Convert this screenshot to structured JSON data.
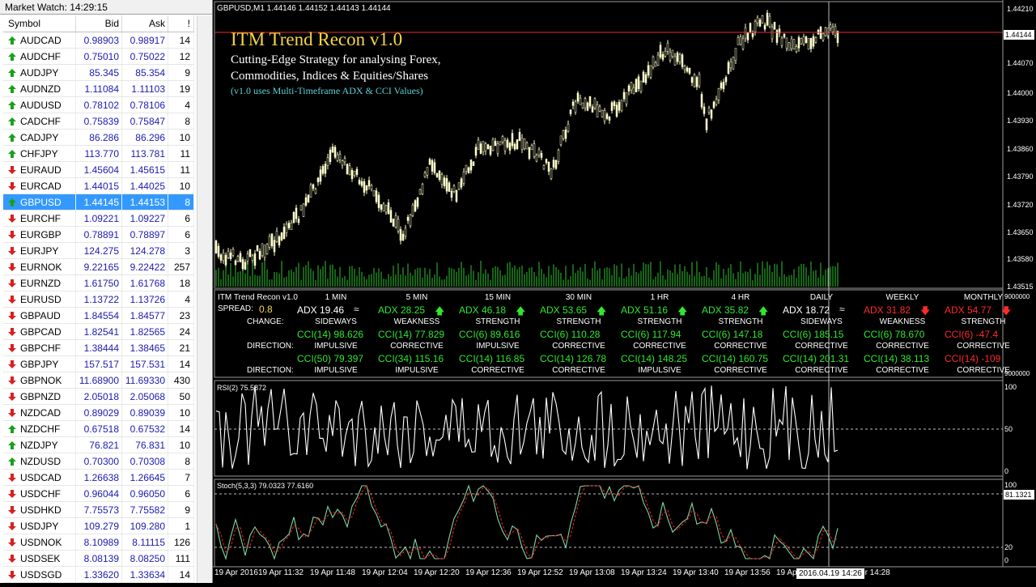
{
  "market_watch": {
    "title": "Market Watch: 14:29:15",
    "columns": [
      "Symbol",
      "Bid",
      "Ask",
      "!"
    ],
    "rows": [
      {
        "symbol": "AUDCAD",
        "bid": "0.98903",
        "ask": "0.98917",
        "spread": "14",
        "dir": "up"
      },
      {
        "symbol": "AUDCHF",
        "bid": "0.75010",
        "ask": "0.75022",
        "spread": "12",
        "dir": "up"
      },
      {
        "symbol": "AUDJPY",
        "bid": "85.345",
        "ask": "85.354",
        "spread": "9",
        "dir": "up"
      },
      {
        "symbol": "AUDNZD",
        "bid": "1.11084",
        "ask": "1.11103",
        "spread": "19",
        "dir": "up"
      },
      {
        "symbol": "AUDUSD",
        "bid": "0.78102",
        "ask": "0.78106",
        "spread": "4",
        "dir": "up"
      },
      {
        "symbol": "CADCHF",
        "bid": "0.75839",
        "ask": "0.75847",
        "spread": "8",
        "dir": "up"
      },
      {
        "symbol": "CADJPY",
        "bid": "86.286",
        "ask": "86.296",
        "spread": "10",
        "dir": "up"
      },
      {
        "symbol": "CHFJPY",
        "bid": "113.770",
        "ask": "113.781",
        "spread": "11",
        "dir": "up"
      },
      {
        "symbol": "EURAUD",
        "bid": "1.45604",
        "ask": "1.45615",
        "spread": "11",
        "dir": "down"
      },
      {
        "symbol": "EURCAD",
        "bid": "1.44015",
        "ask": "1.44025",
        "spread": "10",
        "dir": "down"
      },
      {
        "symbol": "GBPUSD",
        "bid": "1.44145",
        "ask": "1.44153",
        "spread": "8",
        "dir": "up",
        "selected": true
      },
      {
        "symbol": "EURCHF",
        "bid": "1.09221",
        "ask": "1.09227",
        "spread": "6",
        "dir": "down"
      },
      {
        "symbol": "EURGBP",
        "bid": "0.78891",
        "ask": "0.78897",
        "spread": "6",
        "dir": "down"
      },
      {
        "symbol": "EURJPY",
        "bid": "124.275",
        "ask": "124.278",
        "spread": "3",
        "dir": "down"
      },
      {
        "symbol": "EURNOK",
        "bid": "9.22165",
        "ask": "9.22422",
        "spread": "257",
        "dir": "down"
      },
      {
        "symbol": "EURNZD",
        "bid": "1.61750",
        "ask": "1.61768",
        "spread": "18",
        "dir": "down"
      },
      {
        "symbol": "EURUSD",
        "bid": "1.13722",
        "ask": "1.13726",
        "spread": "4",
        "dir": "down"
      },
      {
        "symbol": "GBPAUD",
        "bid": "1.84554",
        "ask": "1.84577",
        "spread": "23",
        "dir": "down"
      },
      {
        "symbol": "GBPCAD",
        "bid": "1.82541",
        "ask": "1.82565",
        "spread": "24",
        "dir": "down"
      },
      {
        "symbol": "GBPCHF",
        "bid": "1.38444",
        "ask": "1.38465",
        "spread": "21",
        "dir": "down"
      },
      {
        "symbol": "GBPJPY",
        "bid": "157.517",
        "ask": "157.531",
        "spread": "14",
        "dir": "down"
      },
      {
        "symbol": "GBPNOK",
        "bid": "11.68900",
        "ask": "11.69330",
        "spread": "430",
        "dir": "down"
      },
      {
        "symbol": "GBPNZD",
        "bid": "2.05018",
        "ask": "2.05068",
        "spread": "50",
        "dir": "down"
      },
      {
        "symbol": "NZDCAD",
        "bid": "0.89029",
        "ask": "0.89039",
        "spread": "10",
        "dir": "down"
      },
      {
        "symbol": "NZDCHF",
        "bid": "0.67518",
        "ask": "0.67532",
        "spread": "14",
        "dir": "up"
      },
      {
        "symbol": "NZDJPY",
        "bid": "76.821",
        "ask": "76.831",
        "spread": "10",
        "dir": "up"
      },
      {
        "symbol": "NZDUSD",
        "bid": "0.70300",
        "ask": "0.70308",
        "spread": "8",
        "dir": "up"
      },
      {
        "symbol": "USDCAD",
        "bid": "1.26638",
        "ask": "1.26645",
        "spread": "7",
        "dir": "down"
      },
      {
        "symbol": "USDCHF",
        "bid": "0.96044",
        "ask": "0.96050",
        "spread": "6",
        "dir": "down"
      },
      {
        "symbol": "USDHKD",
        "bid": "7.75573",
        "ask": "7.75582",
        "spread": "9",
        "dir": "down"
      },
      {
        "symbol": "USDJPY",
        "bid": "109.279",
        "ask": "109.280",
        "spread": "1",
        "dir": "down"
      },
      {
        "symbol": "USDNOK",
        "bid": "8.10989",
        "ask": "8.11115",
        "spread": "126",
        "dir": "down"
      },
      {
        "symbol": "USDSEK",
        "bid": "8.08139",
        "ask": "8.08250",
        "spread": "111",
        "dir": "down"
      },
      {
        "symbol": "USDSGD",
        "bid": "1.33620",
        "ask": "1.33634",
        "spread": "14",
        "dir": "down"
      }
    ]
  },
  "chart": {
    "header": "GBPUSD,M1  1.44146 1.44152 1.44143 1.44144",
    "overlay": {
      "title": "ITM Trend Recon v1.0",
      "line1": "Cutting-Edge Strategy for analysing Forex,",
      "line2": "Commodities, Indices & Equities/Shares",
      "line3": "(v1.0 uses Multi-Timeframe ADX & CCI Values)"
    },
    "price_axis": [
      "1.44210",
      "1.44144",
      "1.44070",
      "1.44000",
      "1.43930",
      "1.43860",
      "1.43790",
      "1.43720",
      "1.43650",
      "1.43580",
      "1.43515"
    ],
    "current_price": "1.44144",
    "colors": {
      "candle": "#ffffcc",
      "grid": "#ffffff",
      "price_line": "#ff2020",
      "green": "#2ee82e",
      "red": "#ff2a2a",
      "gold": "#f5d742",
      "cyan": "#5ad1d6"
    }
  },
  "recon": {
    "label": "ITM Trend Recon v1.0",
    "spread_label": "SPREAD:",
    "spread_value": "0.8",
    "change_label": "CHANGE:",
    "direction_label": "DIRECTION:",
    "scale_top": "9000000",
    "scale_bottom": "9000000",
    "columns": [
      {
        "tf": "1 MIN",
        "adx": "ADX 19.46",
        "adx_icon": "sideways",
        "adx_color": "white",
        "change": "SIDEWAYS",
        "cci1": "CCI(14) 98.626",
        "cci1_color": "green",
        "dir1": "IMPULSIVE",
        "cci2": "CCI(50) 79.397",
        "cci2_color": "green",
        "dir2": "IMPULSIVE"
      },
      {
        "tf": "5 MIN",
        "adx": "ADX 28.25",
        "adx_icon": "up",
        "adx_color": "green",
        "change": "WEAKNESS",
        "cci1": "CCI(14) 77.829",
        "cci1_color": "green",
        "dir1": "CORRECTIVE",
        "cci2": "CCI(34) 115.16",
        "cci2_color": "green",
        "dir2": "IMPULSIVE"
      },
      {
        "tf": "15 MIN",
        "adx": "ADX 46.18",
        "adx_icon": "up",
        "adx_color": "green",
        "change": "STRENGTH",
        "cci1": "CCI(6) 89.616",
        "cci1_color": "green",
        "dir1": "IMPULSIVE",
        "cci2": "CCI(14) 116.85",
        "cci2_color": "green",
        "dir2": "CORRECTIVE"
      },
      {
        "tf": "30 MIN",
        "adx": "ADX 53.65",
        "adx_icon": "up",
        "adx_color": "green",
        "change": "STRENGTH",
        "cci1": "CCI(6) 110.28",
        "cci1_color": "green",
        "dir1": "CORRECTIVE",
        "cci2": "CCI(14) 126.78",
        "cci2_color": "green",
        "dir2": "CORRECTIVE"
      },
      {
        "tf": "1 HR",
        "adx": "ADX 51.16",
        "adx_icon": "up",
        "adx_color": "green",
        "change": "STRENGTH",
        "cci1": "CCI(6) 117.94",
        "cci1_color": "green",
        "dir1": "CORRECTIVE",
        "cci2": "CCI(14) 148.25",
        "cci2_color": "green",
        "dir2": "IMPULSIVE"
      },
      {
        "tf": "4 HR",
        "adx": "ADX 35.82",
        "adx_icon": "up",
        "adx_color": "green",
        "change": "STRENGTH",
        "cci1": "CCI(6) 147.18",
        "cci1_color": "green",
        "dir1": "CORRECTIVE",
        "cci2": "CCI(14) 160.75",
        "cci2_color": "green",
        "dir2": "CORRECTIVE"
      },
      {
        "tf": "DAILY",
        "adx": "ADX 18.72",
        "adx_icon": "sideways",
        "adx_color": "white",
        "change": "SIDEWAYS",
        "cci1": "CCI(6) 185.15",
        "cci1_color": "green",
        "dir1": "CORRECTIVE",
        "cci2": "CCI(14) 201.31",
        "cci2_color": "green",
        "dir2": "CORRECTIVE"
      },
      {
        "tf": "WEEKLY",
        "adx": "ADX 31.82",
        "adx_icon": "down",
        "adx_color": "red",
        "change": "WEAKNESS",
        "cci1": "CCI(6) 78.670",
        "cci1_color": "green",
        "dir1": "CORRECTIVE",
        "cci2": "CCI(14) 38.113",
        "cci2_color": "green",
        "dir2": "CORRECTIVE"
      },
      {
        "tf": "MONTHLY",
        "adx": "ADX 54.77",
        "adx_icon": "down",
        "adx_color": "red",
        "change": "STRENGTH",
        "cci1": "CCI(6) -47.4",
        "cci1_color": "red",
        "dir1": "CORRECTIVE",
        "cci2": "CCI(14) -109",
        "cci2_color": "red",
        "dir2": "CORRECTIVE"
      }
    ]
  },
  "rsi": {
    "label": "RSI(2) 75.5872",
    "axis": [
      "100",
      "50",
      "0"
    ]
  },
  "stoch": {
    "label": "Stoch(5,3,3) 79.0323 77.6160",
    "axis": [
      "100",
      "81.1321",
      "20",
      "0"
    ]
  },
  "time_axis": {
    "labels": [
      "19 Apr 2016",
      "19 Apr 11:32",
      "19 Apr 11:48",
      "19 Apr 12:04",
      "19 Apr 12:20",
      "19 Apr 12:36",
      "19 Apr 12:52",
      "19 Apr 13:08",
      "19 Apr 13:24",
      "19 Apr 13:40",
      "19 Apr 13:56",
      "19 Apr 14:12",
      "19 Apr 14:28"
    ],
    "crosshair_time": "2016.04.19 14:26"
  }
}
